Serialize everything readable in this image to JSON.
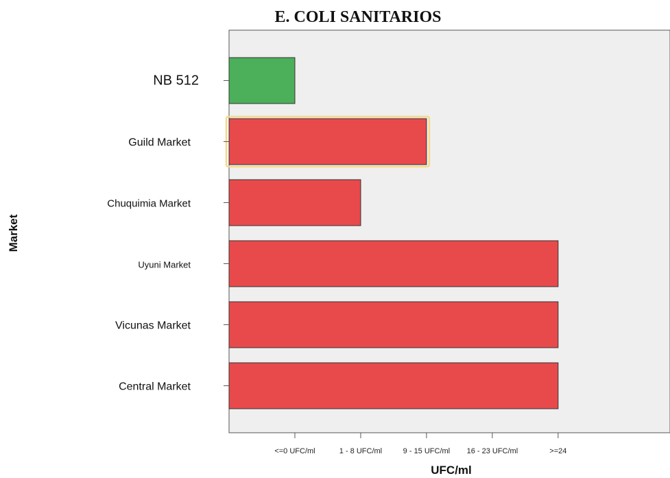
{
  "chart_data": {
    "type": "bar",
    "orientation": "horizontal",
    "title": "E. COLI SANITARIOS",
    "xlabel": "UFC/ml",
    "ylabel": "Market",
    "x_tick_labels": [
      "<=0 UFC/ml",
      "1 - 8 UFC/ml",
      "9 - 15 UFC/ml",
      "16 - 23 UFC/ml",
      ">=24"
    ],
    "xlim": [
      -1,
      5.7
    ],
    "categories": [
      "NB 512",
      "Guild Market",
      "Chuquimia Market",
      "Uyuni Market",
      "Vicunas Market",
      "Central Market"
    ],
    "values": [
      0,
      2,
      1,
      4,
      4,
      4
    ],
    "bar_colors": [
      "#4caf5a",
      "#e84a4c",
      "#e84a4c",
      "#e84a4c",
      "#e84a4c",
      "#e84a4c"
    ],
    "highlighted_category": "Guild Market",
    "highlight_color": "#f5d98a",
    "plot_background": "#efefef",
    "grid": false,
    "legend": "none"
  }
}
